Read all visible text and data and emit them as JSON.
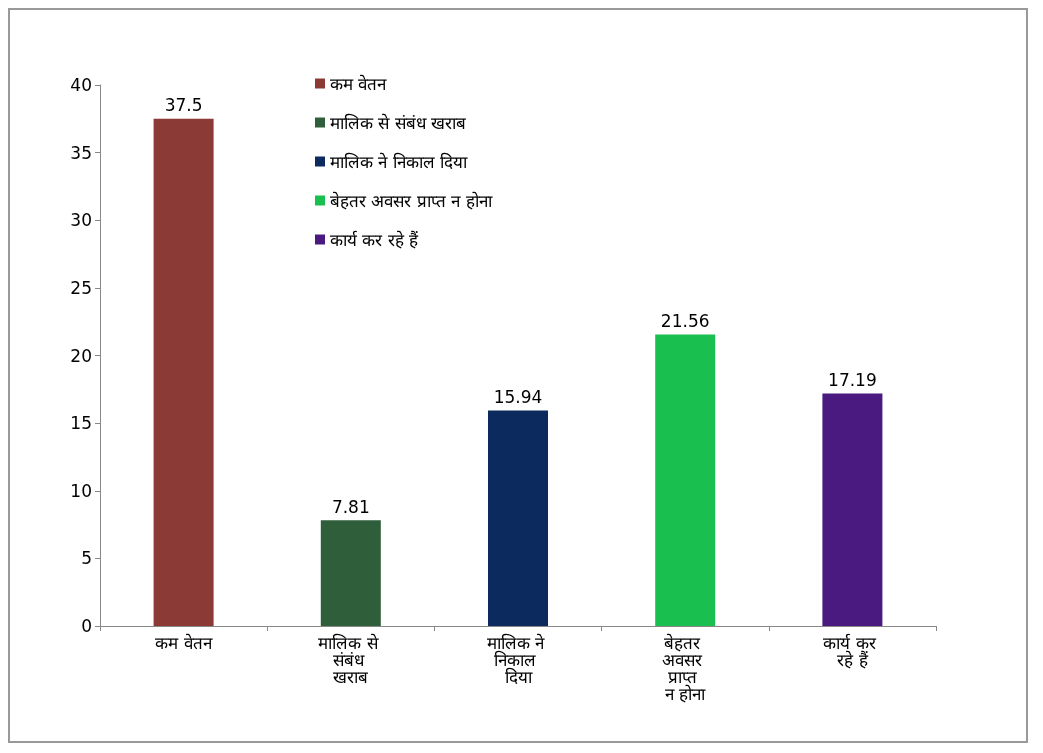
{
  "chart_data": {
    "type": "bar",
    "categories": [
      "कम वेतन",
      "मालिक से संबंध खराब",
      "मालिक ने निकाल दिया",
      "बेहतर अवसर प्राप्त न होना",
      "कार्य कर रहे हैं"
    ],
    "series": [
      {
        "name": "कम वेतन",
        "color": "#8b3a36",
        "values": [
          37.5,
          null,
          null,
          null,
          null
        ]
      },
      {
        "name": "मालिक से संबंध खराब",
        "color": "#2e5e3a",
        "values": [
          null,
          7.81,
          null,
          null,
          null
        ]
      },
      {
        "name": "मालिक ने निकाल दिया",
        "color": "#0d2a5e",
        "values": [
          null,
          null,
          15.94,
          null,
          null
        ]
      },
      {
        "name": "बेहतर अवसर प्राप्त न होना",
        "color": "#19c050",
        "values": [
          null,
          null,
          null,
          21.56,
          null
        ]
      },
      {
        "name": "कार्य कर रहे हैं",
        "color": "#4a1a80",
        "values": [
          null,
          null,
          null,
          null,
          17.19
        ]
      }
    ],
    "ylim": [
      0,
      40
    ],
    "yticks": [
      0,
      5,
      10,
      15,
      20,
      25,
      30,
      35,
      40
    ],
    "data_labels": true,
    "legend": "top",
    "grid": false
  }
}
